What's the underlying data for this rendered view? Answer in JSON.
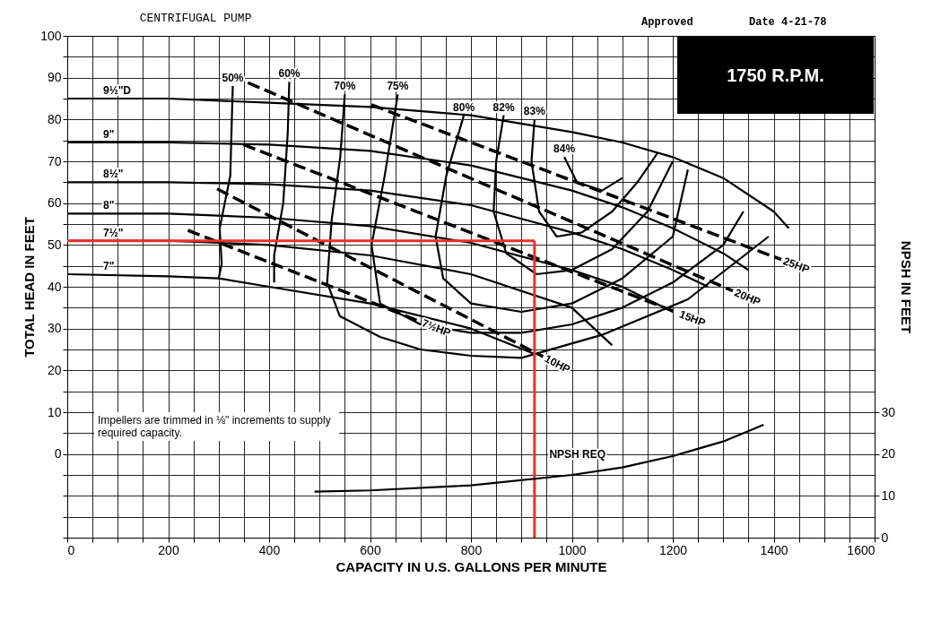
{
  "chart_data": {
    "type": "line",
    "title": "CENTRIFUGAL PUMP",
    "xlabel": "CAPACITY IN U.S. GALLONS PER MINUTE",
    "ylabel": "TOTAL HEAD IN FEET",
    "y2label": "NPSH IN FEET",
    "xlim": [
      0,
      1600
    ],
    "xticks": [
      0,
      {
        "value": 50,
        "label": null
      },
      {
        "value": 100,
        "label": null
      },
      {
        "value": 150,
        "label": null
      },
      200,
      {
        "value": 250,
        "label": null
      },
      {
        "value": 300,
        "label": null
      },
      {
        "value": 350,
        "label": null
      },
      400,
      {
        "value": 450,
        "label": null
      },
      {
        "value": 500,
        "label": null
      },
      {
        "value": 550,
        "label": null
      },
      600,
      {
        "value": 650,
        "label": null
      },
      {
        "value": 700,
        "label": null
      },
      {
        "value": 750,
        "label": null
      },
      800,
      {
        "value": 850,
        "label": null
      },
      {
        "value": 900,
        "label": null
      },
      {
        "value": 950,
        "label": null
      },
      1000,
      {
        "value": 1050,
        "label": null
      },
      {
        "value": 1100,
        "label": null
      },
      {
        "value": 1150,
        "label": null
      },
      1200,
      {
        "value": 1250,
        "label": null
      },
      {
        "value": 1300,
        "label": null
      },
      {
        "value": 1350,
        "label": null
      },
      1400,
      {
        "value": 1450,
        "label": null
      },
      {
        "value": 1500,
        "label": null
      },
      {
        "value": 1550,
        "label": null
      },
      1600
    ],
    "ylim": [
      -20,
      100
    ],
    "yticks": [
      {
        "value": -20,
        "label": null
      },
      {
        "value": -15,
        "label": null
      },
      {
        "value": -10,
        "label": null
      },
      {
        "value": -5,
        "label": null
      },
      0,
      {
        "value": 5,
        "label": null
      },
      10,
      {
        "value": 15,
        "label": null
      },
      20,
      {
        "value": 25,
        "label": null
      },
      30,
      {
        "value": 35,
        "label": null
      },
      40,
      {
        "value": 45,
        "label": null
      },
      50,
      {
        "value": 55,
        "label": null
      },
      60,
      {
        "value": 65,
        "label": null
      },
      70,
      {
        "value": 75,
        "label": null
      },
      80,
      {
        "value": 85,
        "label": null
      },
      90,
      {
        "value": 95,
        "label": null
      },
      100
    ],
    "y2lim": [
      0,
      120
    ],
    "y2ticks": [
      0,
      10,
      20,
      30
    ],
    "grid": true,
    "series": [
      {
        "name": "9½\"D",
        "color": "#000000",
        "x": [
          0,
          200,
          400,
          600,
          800,
          1000,
          1100,
          1200,
          1300,
          1400,
          1430
        ],
        "values": [
          85,
          85,
          84,
          83,
          81,
          77,
          74.5,
          71,
          66,
          58,
          54
        ]
      },
      {
        "name": "9\"",
        "color": "#000000",
        "x": [
          0,
          200,
          400,
          600,
          800,
          1000,
          1100,
          1200,
          1300,
          1350
        ],
        "values": [
          74.5,
          74.5,
          74,
          72.5,
          69,
          63,
          59,
          54,
          48,
          44
        ]
      },
      {
        "name": "8½\"",
        "color": "#000000",
        "x": [
          0,
          200,
          400,
          600,
          800,
          1000,
          1100,
          1200,
          1270
        ],
        "values": [
          65,
          65,
          64.5,
          63,
          59.5,
          53,
          49,
          44,
          40
        ]
      },
      {
        "name": "8\"",
        "color": "#000000",
        "x": [
          0,
          200,
          400,
          600,
          800,
          1000,
          1100,
          1200
        ],
        "values": [
          57.5,
          57.5,
          56.5,
          54.5,
          50.5,
          44,
          40,
          34
        ]
      },
      {
        "name": "7½\"",
        "color": "#000000",
        "x": [
          0,
          200,
          400,
          600,
          800,
          1000,
          1080
        ],
        "values": [
          51,
          51,
          50,
          47.5,
          43,
          35,
          26
        ]
      },
      {
        "name": "7\"",
        "color": "#000000",
        "x": [
          0,
          200,
          300,
          400,
          600,
          800,
          925
        ],
        "values": [
          43,
          42.5,
          42,
          40,
          36,
          30,
          24
        ]
      },
      {
        "name": "50%",
        "color": "#000000",
        "x": [
          328,
          323,
          302,
          306,
          300
        ],
        "values": [
          88,
          66.5,
          54,
          45.5,
          42
        ]
      },
      {
        "name": "60%",
        "color": "#000000",
        "x": [
          440,
          437,
          428,
          410,
          410
        ],
        "values": [
          89,
          77,
          60,
          47.5,
          41
        ]
      },
      {
        "name": "70%",
        "color": "#000000",
        "x": [
          550,
          541,
          524,
          515,
          540,
          620,
          700,
          800,
          900,
          1060,
          1230,
          1390
        ],
        "values": [
          86,
          71,
          56,
          41,
          33,
          28,
          25,
          23.5,
          23,
          28.5,
          37,
          52
        ]
      },
      {
        "name": "75%",
        "color": "#000000",
        "x": [
          655,
          629,
          603,
          620,
          700,
          800,
          900,
          1000,
          1100,
          1200,
          1300,
          1340
        ],
        "values": [
          86,
          66.5,
          50,
          36,
          31,
          29,
          29,
          31,
          35,
          41,
          50,
          58
        ]
      },
      {
        "name": "80%",
        "color": "#000000",
        "x": [
          786,
          751,
          730,
          745,
          800,
          900,
          1000,
          1100,
          1200,
          1230
        ],
        "values": [
          81,
          66.5,
          52,
          42,
          36,
          34,
          36,
          42,
          52,
          68
        ]
      },
      {
        "name": "82%",
        "color": "#000000",
        "x": [
          865,
          850,
          845,
          870,
          930,
          1000,
          1080,
          1150,
          1200
        ],
        "values": [
          81,
          70,
          58,
          48,
          43,
          44,
          49,
          58,
          70
        ]
      },
      {
        "name": "83%",
        "color": "#000000",
        "x": [
          926,
          920,
          935,
          970,
          1020,
          1080,
          1130,
          1170
        ],
        "values": [
          80,
          70,
          58,
          52,
          53,
          58,
          65,
          72
        ]
      },
      {
        "name": "84%",
        "color": "#000000",
        "x": [
          985,
          1010,
          1060,
          1100
        ],
        "values": [
          71,
          65,
          63,
          66
        ]
      },
      {
        "name": "7½HP",
        "color": "#000000",
        "line_style": "dashed",
        "x": [
          239,
          699
        ],
        "values": [
          53.5,
          31.7
        ]
      },
      {
        "name": "10HP",
        "color": "#000000",
        "line_style": "dashed",
        "x": [
          297,
          943
        ],
        "values": [
          63.4,
          23.3
        ]
      },
      {
        "name": "15HP",
        "color": "#000000",
        "line_style": "dashed",
        "x": [
          349,
          1209
        ],
        "values": [
          74,
          33.8
        ]
      },
      {
        "name": "20HP",
        "color": "#000000",
        "line_style": "dashed",
        "x": [
          358,
          1319
        ],
        "values": [
          88.8,
          39
        ]
      },
      {
        "name": "25HP",
        "color": "#000000",
        "line_style": "dashed",
        "x": [
          603,
          1415
        ],
        "values": [
          83.5,
          46.5
        ]
      },
      {
        "name": "NPSH REQ",
        "color": "#000000",
        "axis": "y2",
        "x": [
          490,
          600,
          800,
          1000,
          1100,
          1200,
          1300,
          1380
        ],
        "values": [
          11,
          11.3,
          12.5,
          15,
          16.8,
          19.5,
          23,
          27
        ]
      },
      {
        "color": "#e8322d",
        "x": [
          0,
          926
        ],
        "values": [
          51,
          51
        ]
      },
      {
        "color": "#e8322d",
        "x": [
          926,
          926
        ],
        "values": [
          51,
          -20
        ]
      }
    ],
    "annotations": [
      "Approved",
      "Date 4-21-78",
      "1750 R.P.M.",
      "Impellers are trimmed in ⅛\" increments to supply required capacity."
    ]
  }
}
